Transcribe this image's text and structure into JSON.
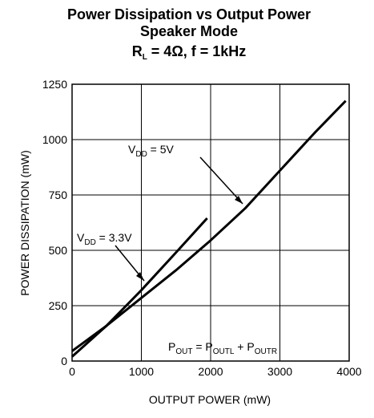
{
  "chart_data": {
    "type": "line",
    "title": [
      "Power Dissipation vs Output Power",
      "Speaker Mode"
    ],
    "title_line3": [
      "R",
      "L",
      " = 4Ω, f = 1kHz"
    ],
    "x_label": "OUTPUT POWER (mW)",
    "y_label": "POWER DISSIPATION (mW)",
    "xlim": [
      0,
      4000
    ],
    "xticks": [
      0,
      1000,
      2000,
      3000,
      4000
    ],
    "ylim": [
      0,
      1250
    ],
    "yticks": [
      0,
      250,
      500,
      750,
      1000,
      1250
    ],
    "grid": true,
    "series": [
      {
        "color": "#000000",
        "x": [
          0,
          500,
          1000,
          1500,
          2000,
          2500,
          3000,
          3500,
          3950
        ],
        "values": [
          45,
          160,
          285,
          410,
          545,
          690,
          860,
          1030,
          1175
        ]
      },
      {
        "color": "#000000",
        "x": [
          0,
          500,
          1000,
          1500,
          1950
        ],
        "values": [
          20,
          160,
          320,
          490,
          645
        ]
      }
    ],
    "annotations": [
      [
        "V",
        "DD",
        " = 5V"
      ],
      [
        "V",
        "DD",
        " = 3.3V"
      ],
      [
        "P",
        "OUT",
        " = P",
        "OUTL",
        "  +  P",
        "OUTR"
      ]
    ]
  }
}
